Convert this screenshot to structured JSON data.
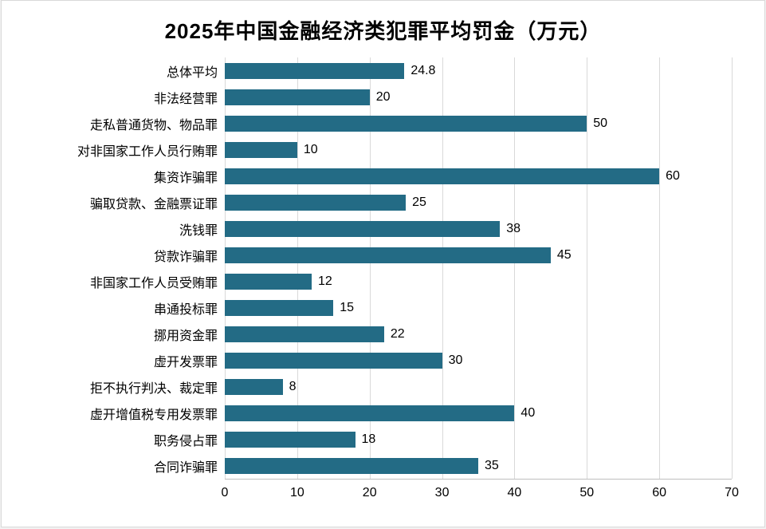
{
  "title": "2025年中国金融经济类犯罪平均罚金（万元）",
  "colors": {
    "bar": "#236B85",
    "grid": "#D9D9D9",
    "axis": "#BFBFBF",
    "text": "#000000",
    "background": "#FFFFFF"
  },
  "chart_data": {
    "type": "bar",
    "orientation": "horizontal",
    "title": "2025年中国金融经济类犯罪平均罚金（万元）",
    "categories": [
      "总体平均",
      "非法经营罪",
      "走私普通货物、物品罪",
      "对非国家工作人员行贿罪",
      "集资诈骗罪",
      "骗取贷款、金融票证罪",
      "洗钱罪",
      "贷款诈骗罪",
      "非国家工作人员受贿罪",
      "串通投标罪",
      "挪用资金罪",
      "虚开发票罪",
      "拒不执行判决、裁定罪",
      "虚开增值税专用发票罪",
      "职务侵占罪",
      "合同诈骗罪"
    ],
    "values": [
      24.8,
      20,
      50,
      10,
      60,
      25,
      38,
      45,
      12,
      15,
      22,
      30,
      8,
      40,
      18,
      35
    ],
    "value_labels": [
      "24.8",
      "20",
      "50",
      "10",
      "60",
      "25",
      "38",
      "45",
      "12",
      "15",
      "22",
      "30",
      "8",
      "40",
      "18",
      "35"
    ],
    "xlabel": "",
    "ylabel": "",
    "xlim": [
      0,
      70
    ],
    "xticks": [
      0,
      10,
      20,
      30,
      40,
      50,
      60,
      70
    ],
    "xtick_labels": [
      "0",
      "10",
      "20",
      "30",
      "40",
      "50",
      "60",
      "70"
    ],
    "grid": true,
    "legend": "none"
  }
}
